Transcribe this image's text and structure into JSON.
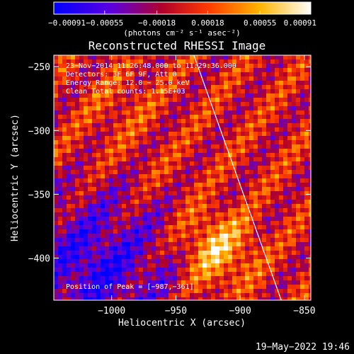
{
  "chart_data": {
    "type": "heatmap",
    "title": "Reconstructed RHESSI Image",
    "xlabel": "Heliocentric X (arcsec)",
    "ylabel": "Heliocentric Y (arcsec)",
    "xlim": [
      -1045,
      -845
    ],
    "ylim": [
      -433,
      -241
    ],
    "xticks": [
      -1000,
      -950,
      -900,
      -850
    ],
    "yticks": [
      -400,
      -350,
      -300,
      -250
    ],
    "xtick_labels": [
      "−1000",
      "−950",
      "−900",
      "−850"
    ],
    "ytick_labels": [
      "−400",
      "−350",
      "−300",
      "−250"
    ],
    "colorbar": {
      "range": [
        -0.00091,
        0.00091
      ],
      "ticks": [
        -0.00091,
        -0.00055,
        -0.00018,
        0.00018,
        0.00055,
        0.00091
      ],
      "tick_labels": [
        "−0.00091",
        "−0.00055",
        "−0.00018",
        "0.00018",
        "0.00055",
        "0.00091"
      ],
      "units": "(photons cm⁻² s⁻¹ asec⁻²)",
      "colors": [
        "#0000ff",
        "#6a00d8",
        "#d8001c",
        "#ff5a00",
        "#ffc800",
        "#ffffff"
      ]
    },
    "annotations": [
      "23−Nov−2014 11:26:48.000 to 11:29:36.000",
      "Detectors: 3F 6F 9F, Att 0",
      "Energy Range: 12.0 − 25.0 keV",
      "Clean    Total counts: 1.15E+03"
    ],
    "peak_label": "Position of Peak = [−987,−361]",
    "limb_line": [
      [
        -936,
        -241
      ],
      [
        -868,
        -433
      ]
    ]
  },
  "footer": {
    "date": "19−May−2022 19:46"
  }
}
